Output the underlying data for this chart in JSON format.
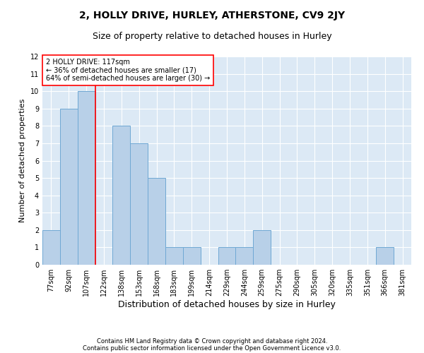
{
  "title": "2, HOLLY DRIVE, HURLEY, ATHERSTONE, CV9 2JY",
  "subtitle": "Size of property relative to detached houses in Hurley",
  "xlabel": "Distribution of detached houses by size in Hurley",
  "ylabel": "Number of detached properties",
  "footnote1": "Contains HM Land Registry data © Crown copyright and database right 2024.",
  "footnote2": "Contains public sector information licensed under the Open Government Licence v3.0.",
  "categories": [
    "77sqm",
    "92sqm",
    "107sqm",
    "122sqm",
    "138sqm",
    "153sqm",
    "168sqm",
    "183sqm",
    "199sqm",
    "214sqm",
    "229sqm",
    "244sqm",
    "259sqm",
    "275sqm",
    "290sqm",
    "305sqm",
    "320sqm",
    "335sqm",
    "351sqm",
    "366sqm",
    "381sqm"
  ],
  "values": [
    2,
    9,
    10,
    0,
    8,
    7,
    5,
    1,
    1,
    0,
    1,
    1,
    2,
    0,
    0,
    0,
    0,
    0,
    0,
    1,
    0
  ],
  "bar_color": "#b8d0e8",
  "bar_edge_color": "#6fa8d4",
  "background_color": "#dce9f5",
  "grid_color": "#ffffff",
  "red_line_x": 2.5,
  "annotation_line1": "2 HOLLY DRIVE: 117sqm",
  "annotation_line2": "← 36% of detached houses are smaller (17)",
  "annotation_line3": "64% of semi-detached houses are larger (30) →",
  "ylim": [
    0,
    12
  ],
  "yticks": [
    0,
    1,
    2,
    3,
    4,
    5,
    6,
    7,
    8,
    9,
    10,
    11,
    12
  ],
  "title_fontsize": 10,
  "subtitle_fontsize": 9,
  "xlabel_fontsize": 9,
  "ylabel_fontsize": 8,
  "tick_fontsize": 7,
  "annot_fontsize": 7,
  "footnote_fontsize": 6
}
